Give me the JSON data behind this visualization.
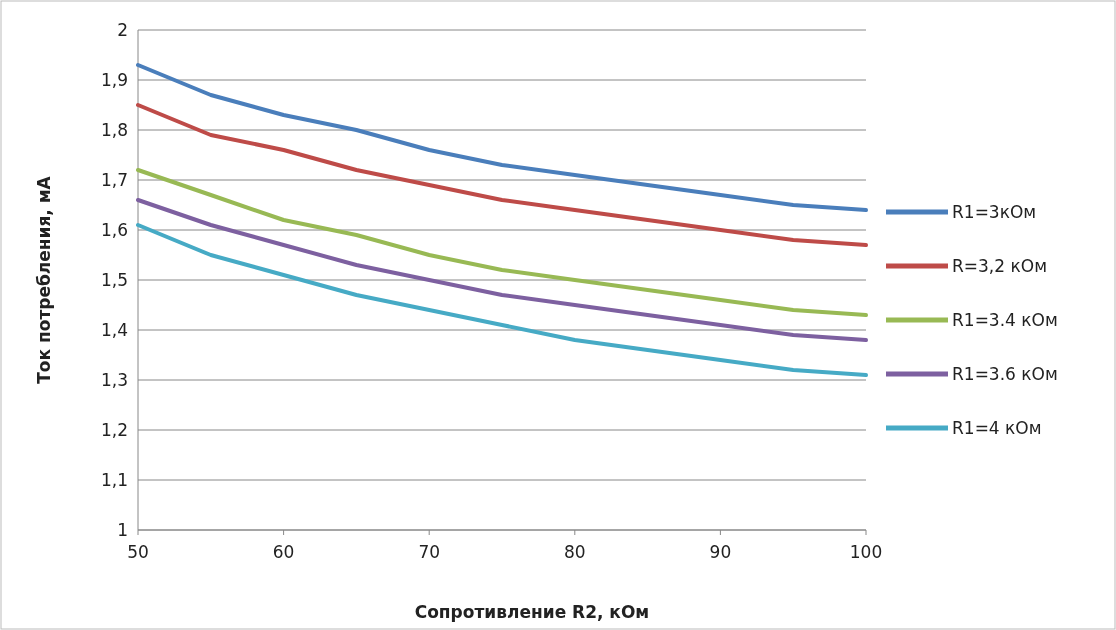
{
  "chart_data": {
    "type": "line",
    "xlabel": "Сопротивление  R2, кОм",
    "ylabel": "Ток потребления, мА",
    "x": [
      50,
      55,
      60,
      65,
      70,
      75,
      80,
      85,
      90,
      95,
      100
    ],
    "series": [
      {
        "name": "R1=3кОм",
        "color": "#4a7ebb",
        "values": [
          1.93,
          1.87,
          1.83,
          1.8,
          1.76,
          1.73,
          1.71,
          1.69,
          1.67,
          1.65,
          1.64
        ]
      },
      {
        "name": "R=3,2 кОм",
        "color": "#be4b48",
        "values": [
          1.85,
          1.79,
          1.76,
          1.72,
          1.69,
          1.66,
          1.64,
          1.62,
          1.6,
          1.58,
          1.57
        ]
      },
      {
        "name": "R1=3.4 кОм",
        "color": "#98b954",
        "values": [
          1.72,
          1.67,
          1.62,
          1.59,
          1.55,
          1.52,
          1.5,
          1.48,
          1.46,
          1.44,
          1.43
        ]
      },
      {
        "name": "R1=3.6 кОм",
        "color": "#7d60a0",
        "values": [
          1.66,
          1.61,
          1.57,
          1.53,
          1.5,
          1.47,
          1.45,
          1.43,
          1.41,
          1.39,
          1.38
        ]
      },
      {
        "name": "R1=4 кОм",
        "color": "#46aac5",
        "values": [
          1.61,
          1.55,
          1.51,
          1.47,
          1.44,
          1.41,
          1.38,
          1.36,
          1.34,
          1.32,
          1.31
        ]
      }
    ],
    "xlim": [
      50,
      100
    ],
    "xticks": [
      50,
      60,
      70,
      80,
      90,
      100
    ],
    "ylim": [
      1,
      2
    ],
    "yticks": [
      1,
      {
        "value": 1.1,
        "label": "1,1"
      },
      {
        "value": 1.2,
        "label": "1,2"
      },
      {
        "value": 1.3,
        "label": "1,3"
      },
      {
        "value": 1.4,
        "label": "1,4"
      },
      {
        "value": 1.5,
        "label": "1,5"
      },
      {
        "value": 1.6,
        "label": "1,6"
      },
      {
        "value": 1.7,
        "label": "1,7"
      },
      {
        "value": 1.8,
        "label": "1,8"
      },
      {
        "value": 1.9,
        "label": "1,9"
      },
      2
    ],
    "grid": "y",
    "legend": "right",
    "marker": "none",
    "line_style": "solid"
  }
}
